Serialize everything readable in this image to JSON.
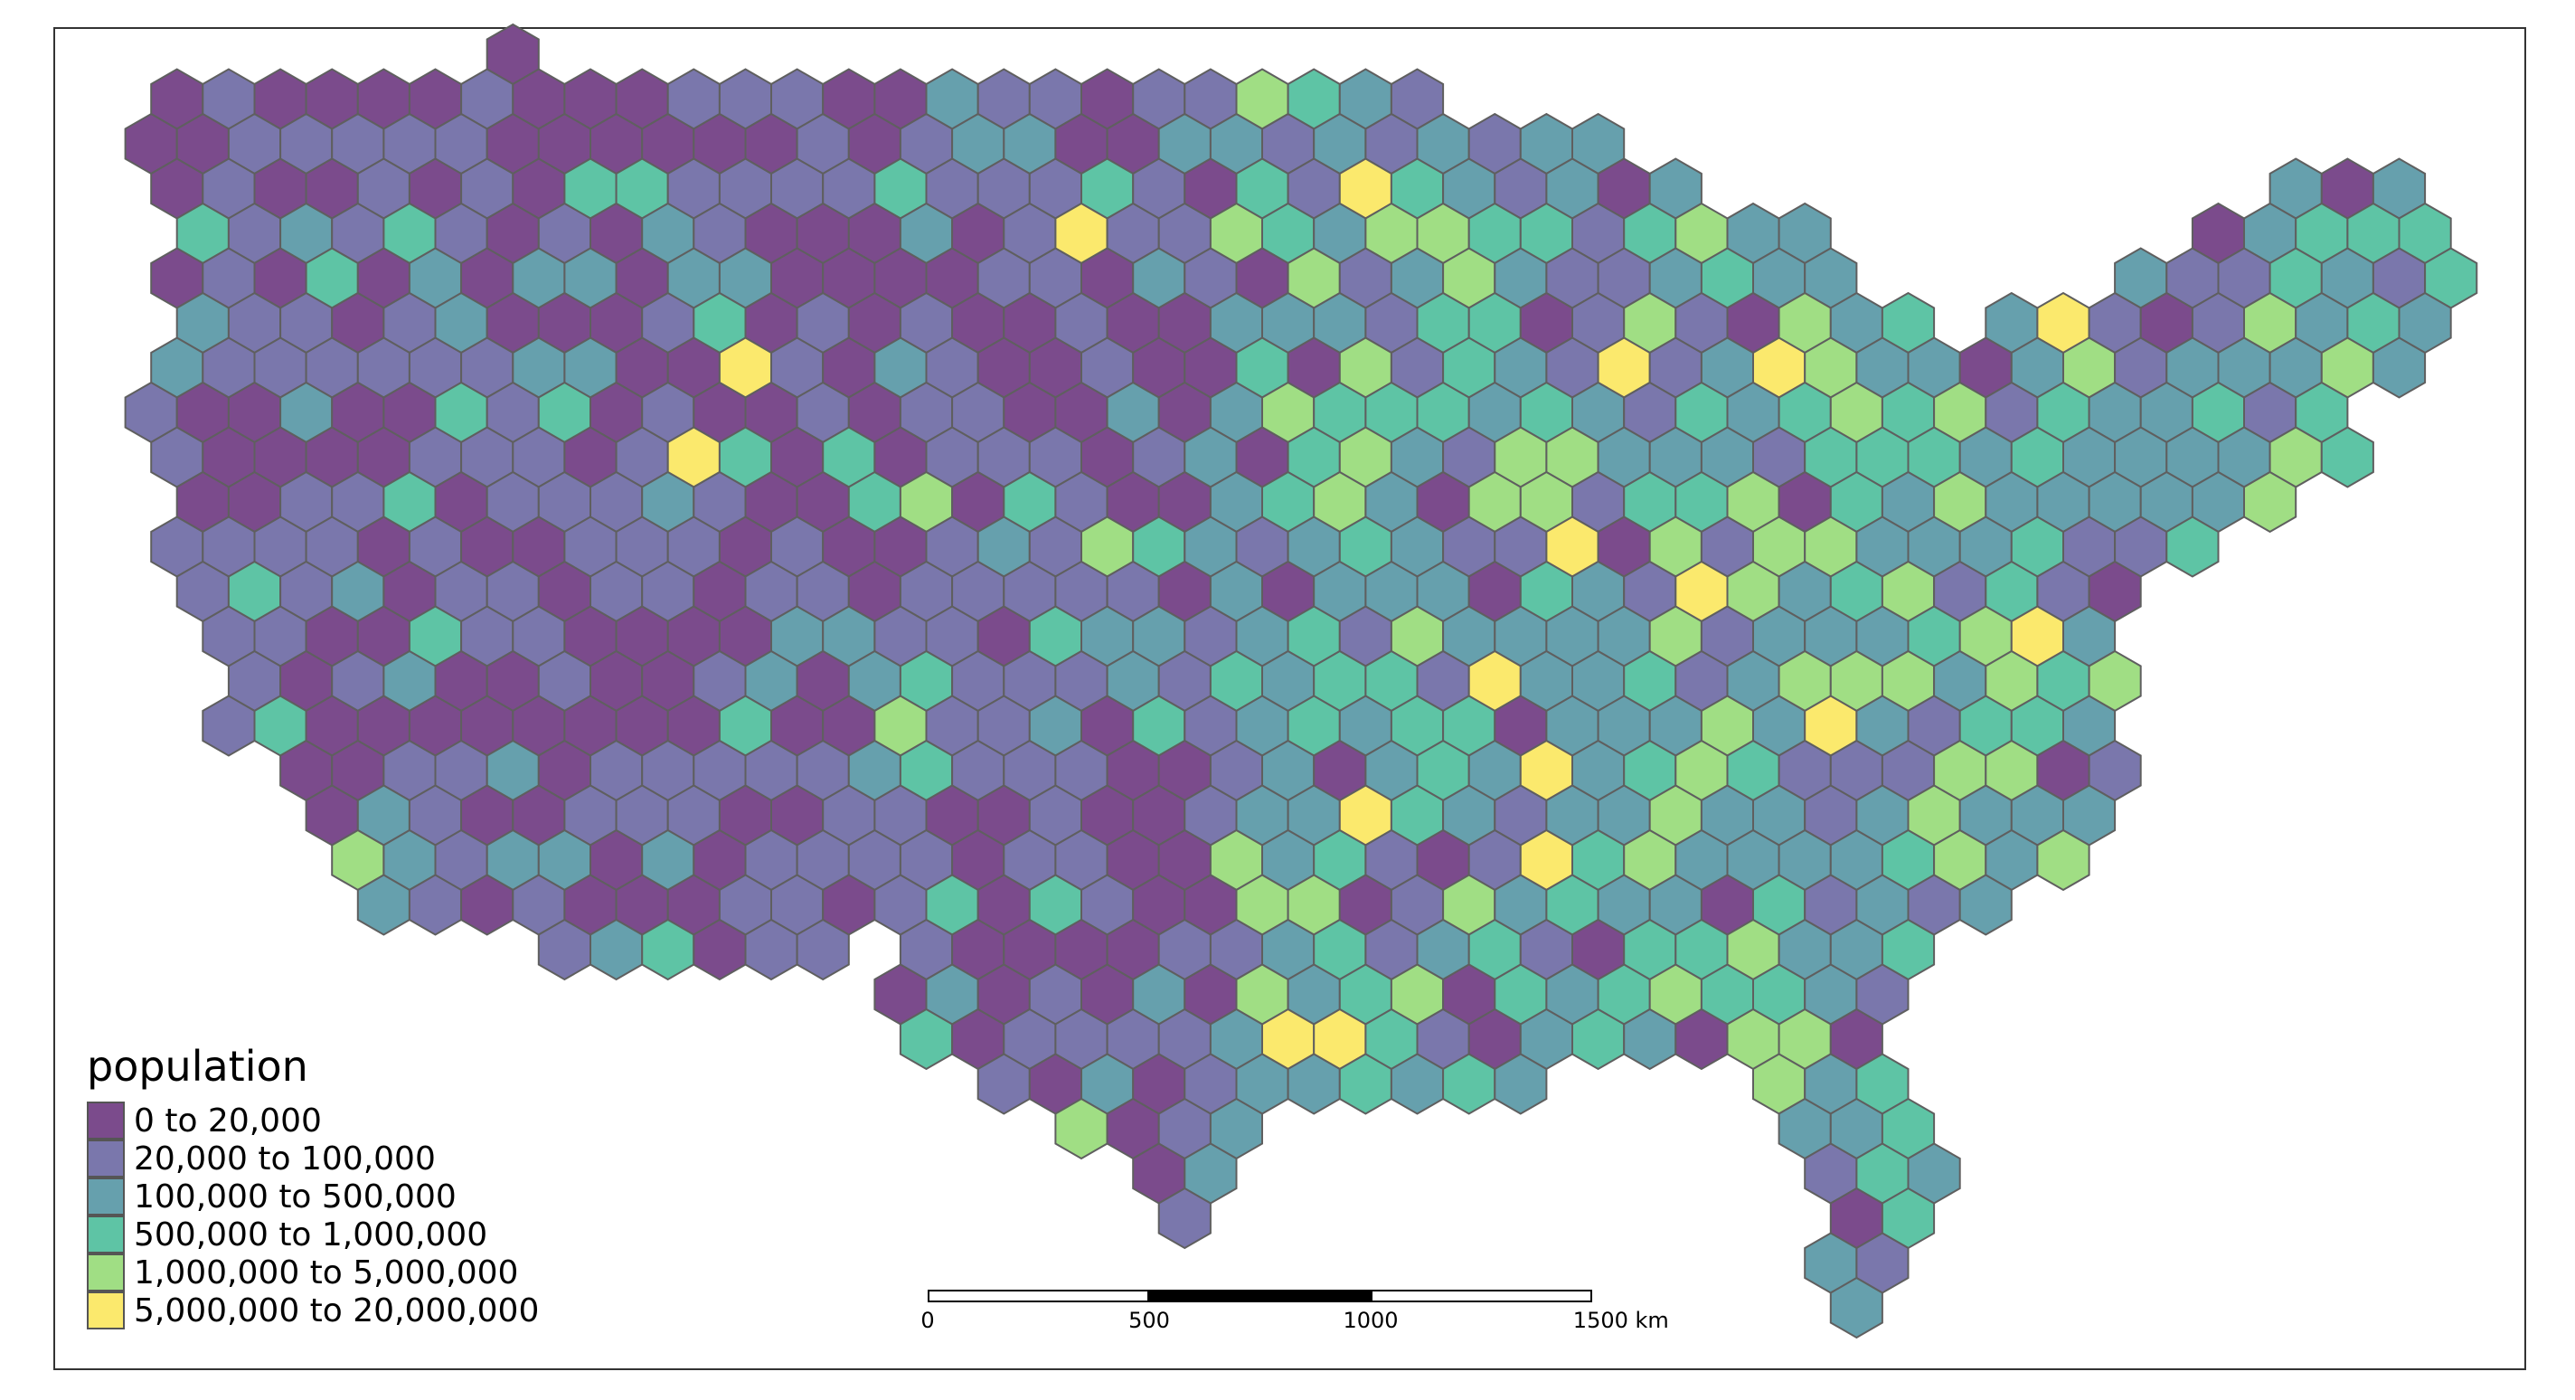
{
  "legend": {
    "title": "population",
    "classes": [
      {
        "label": "0 to 20,000",
        "color": "#7b4b8c"
      },
      {
        "label": "20,000 to 100,000",
        "color": "#7a77ac"
      },
      {
        "label": "100,000 to 500,000",
        "color": "#66a0ad"
      },
      {
        "label": "500,000 to 1,000,000",
        "color": "#5ec4a5"
      },
      {
        "label": "1,000,000 to 5,000,000",
        "color": "#a0de84"
      },
      {
        "label": "5,000,000 to 20,000,000",
        "color": "#fbe96d"
      }
    ]
  },
  "scale_bar": {
    "labels": [
      "0",
      "500",
      "1000",
      "1500 km"
    ],
    "ticks_km": [
      0,
      500,
      1000,
      1500
    ]
  },
  "colors": {
    "hex_stroke": "#5f5f5f",
    "frame": "#333333"
  }
}
